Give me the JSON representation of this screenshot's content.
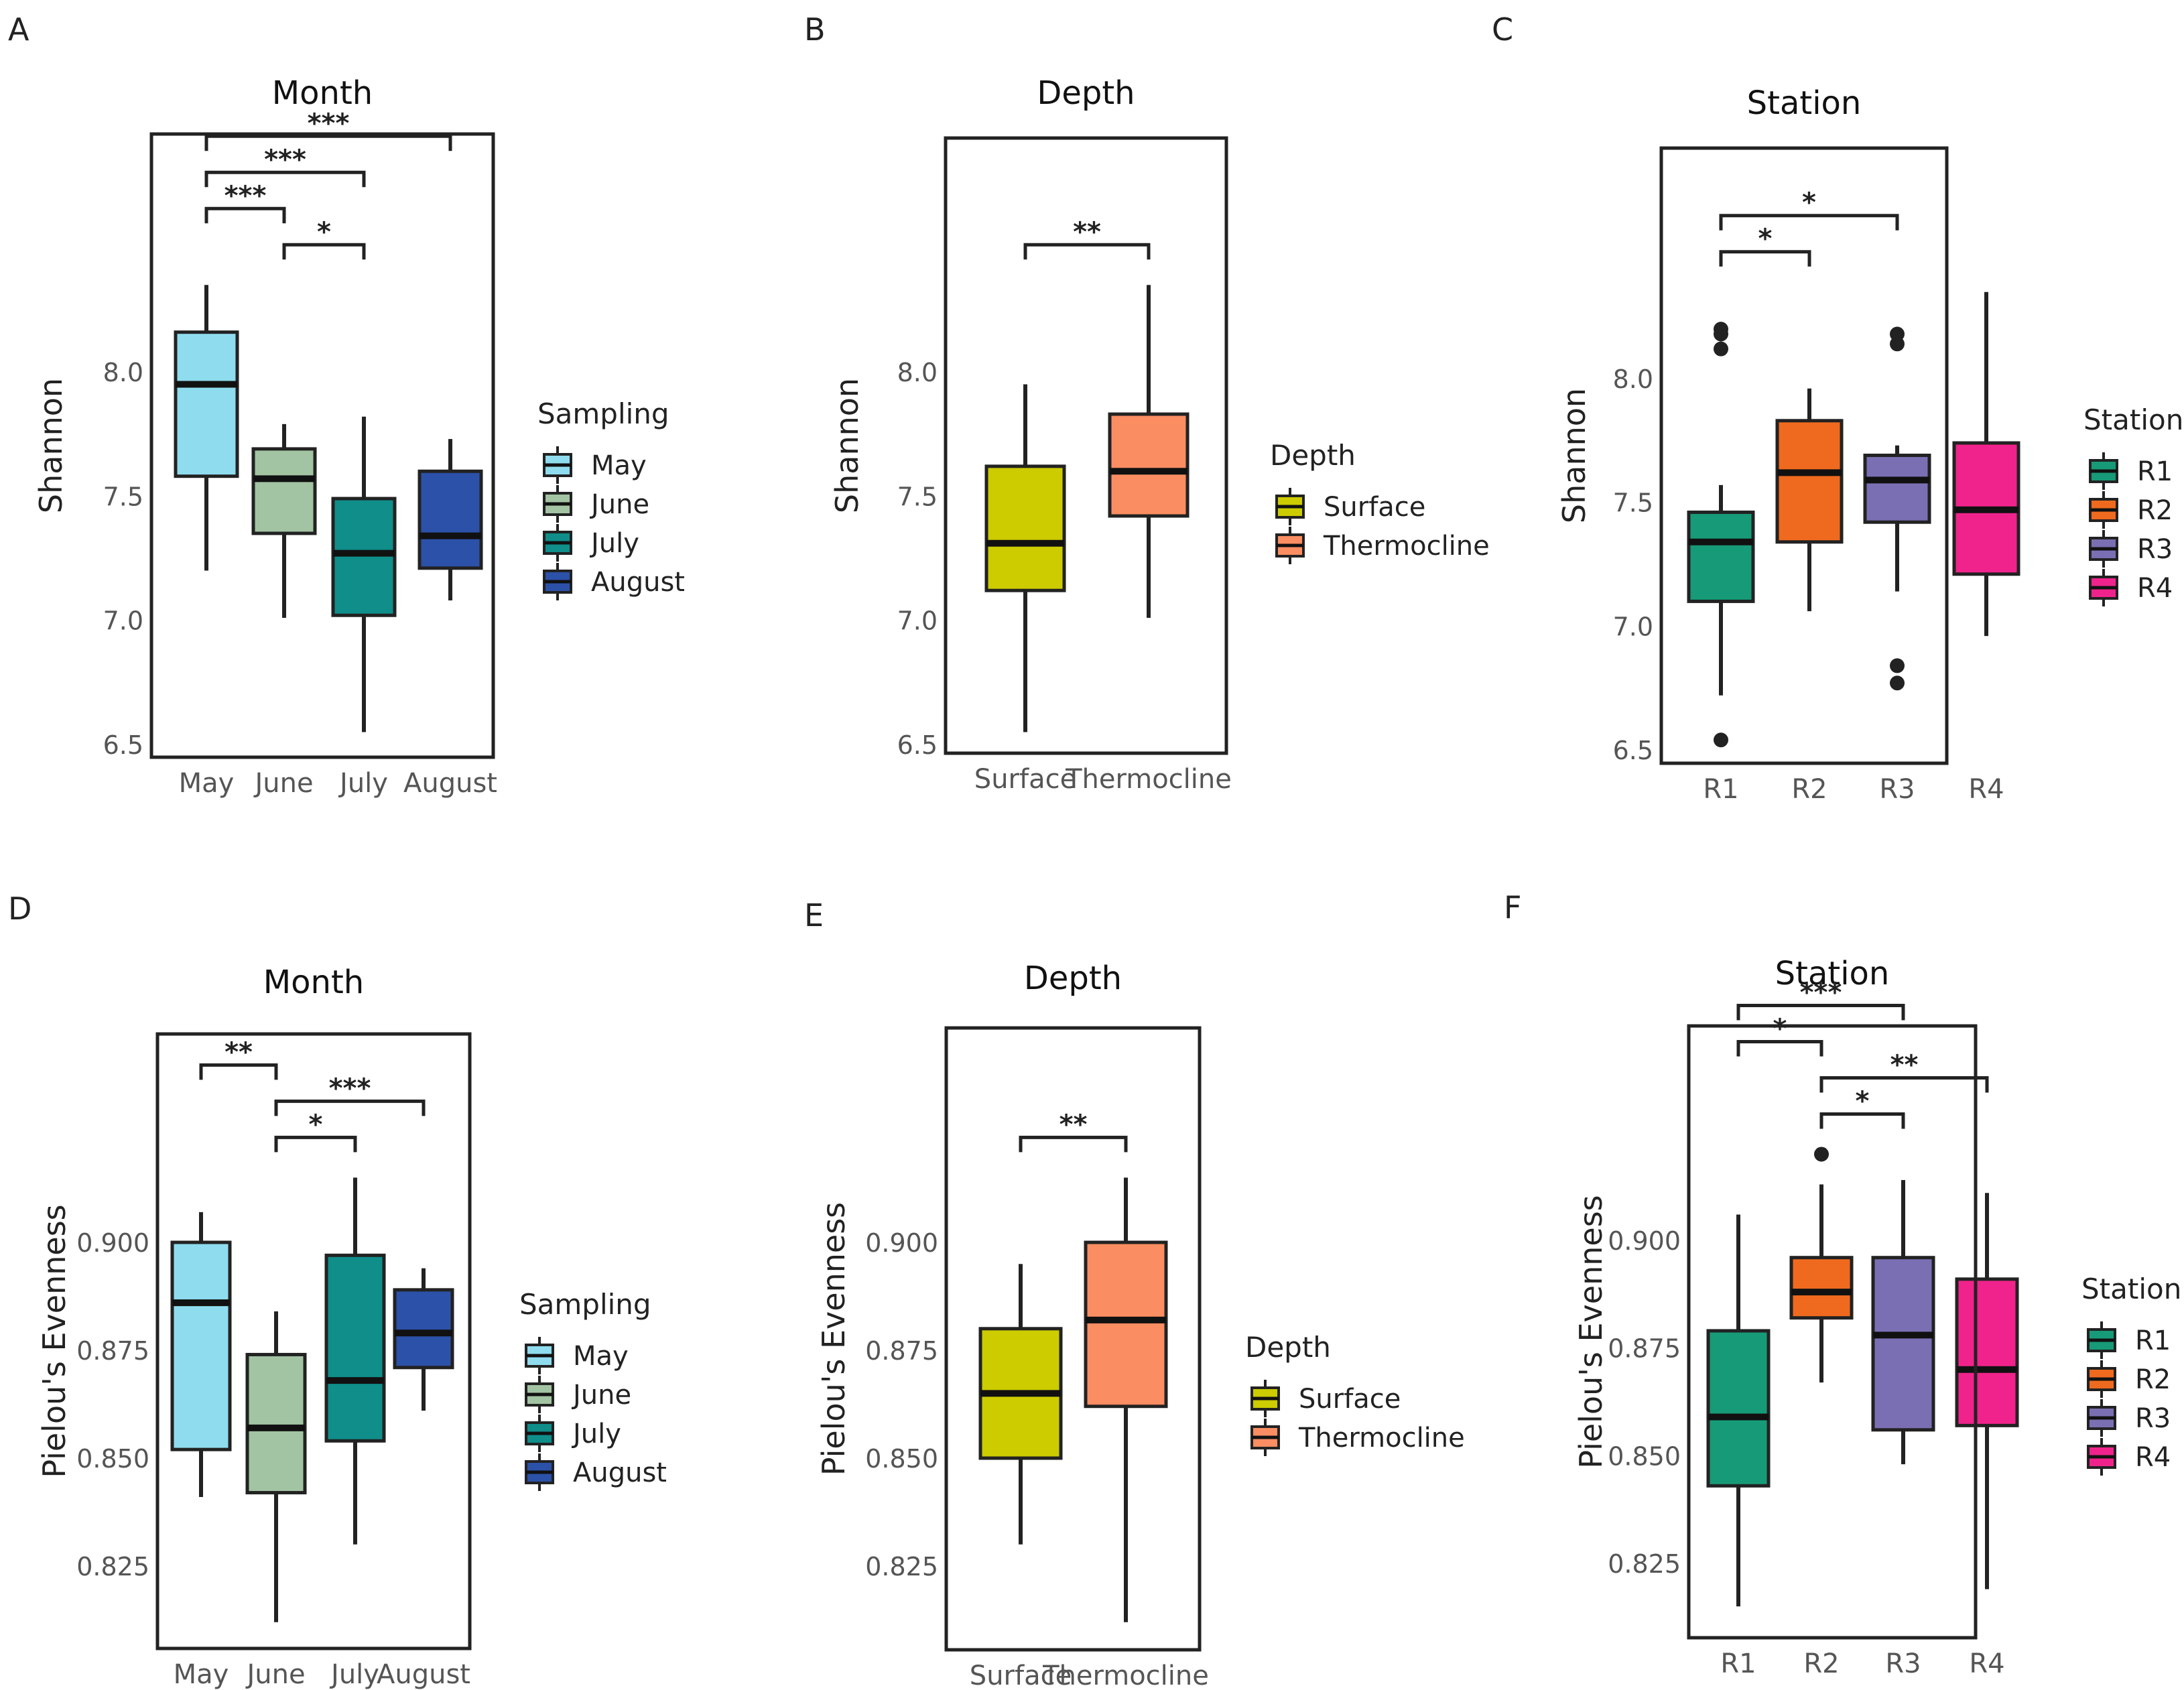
{
  "colors": {
    "May": "#8fdcee",
    "June": "#a3c4a3",
    "July": "#0f8e8a",
    "August": "#2c51a8",
    "Surface": "#cccc00",
    "Thermocline": "#fb8d62",
    "R1": "#179a77",
    "R2": "#ef6a1e",
    "R3": "#7b6fb3",
    "R4": "#f0238c"
  },
  "chart_data": [
    {
      "type": "box",
      "panel": "A",
      "title": "Month",
      "ylabel": "Shannon",
      "ylim": [
        6.45,
        8.95
      ],
      "yticks": [
        "6.5",
        "7.0",
        "7.5",
        "8.0"
      ],
      "categories": [
        "May",
        "June",
        "July",
        "August"
      ],
      "boxes": [
        {
          "name": "May",
          "min": 7.2,
          "q1": 7.58,
          "median": 7.95,
          "q3": 8.16,
          "max": 8.35,
          "outliers": []
        },
        {
          "name": "June",
          "min": 7.01,
          "q1": 7.35,
          "median": 7.57,
          "q3": 7.69,
          "max": 7.79,
          "outliers": []
        },
        {
          "name": "July",
          "min": 6.55,
          "q1": 7.02,
          "median": 7.27,
          "q3": 7.49,
          "max": 7.82,
          "outliers": []
        },
        {
          "name": "August",
          "min": 7.08,
          "q1": 7.21,
          "median": 7.34,
          "q3": 7.6,
          "max": 7.73,
          "outliers": []
        }
      ],
      "brackets": [
        {
          "from": "May",
          "to": "August",
          "label": "***"
        },
        {
          "from": "May",
          "to": "July",
          "label": "***"
        },
        {
          "from": "May",
          "to": "June",
          "label": "***"
        },
        {
          "from": "June",
          "to": "July",
          "label": "*"
        }
      ],
      "legend": {
        "title": "Sampling",
        "items": [
          "May",
          "June",
          "July",
          "August"
        ]
      }
    },
    {
      "type": "box",
      "panel": "B",
      "title": "Depth",
      "ylabel": "Shannon",
      "ylim": [
        6.45,
        8.95
      ],
      "yticks": [
        "6.5",
        "7.0",
        "7.5",
        "8.0"
      ],
      "categories": [
        "Surface",
        "Thermocline"
      ],
      "boxes": [
        {
          "name": "Surface",
          "min": 6.55,
          "q1": 7.12,
          "median": 7.31,
          "q3": 7.62,
          "max": 7.95,
          "outliers": []
        },
        {
          "name": "Thermocline",
          "min": 7.01,
          "q1": 7.42,
          "median": 7.6,
          "q3": 7.83,
          "max": 8.35,
          "outliers": []
        }
      ],
      "brackets": [
        {
          "from": "Surface",
          "to": "Thermocline",
          "label": "**"
        }
      ],
      "legend": {
        "title": "Depth",
        "items": [
          "Surface",
          "Thermocline"
        ]
      }
    },
    {
      "type": "box",
      "panel": "C",
      "title": "Station",
      "ylabel": "Shannon",
      "ylim": [
        6.45,
        8.95
      ],
      "yticks": [
        "6.5",
        "7.0",
        "7.5",
        "8.0"
      ],
      "categories": [
        "R1",
        "R2",
        "R3",
        "R4"
      ],
      "boxes": [
        {
          "name": "R1",
          "min": 6.72,
          "q1": 7.1,
          "median": 7.34,
          "q3": 7.46,
          "max": 7.57,
          "outliers": [
            6.54,
            8.12,
            8.18,
            8.2
          ]
        },
        {
          "name": "R2",
          "min": 7.06,
          "q1": 7.34,
          "median": 7.62,
          "q3": 7.83,
          "max": 7.96,
          "outliers": []
        },
        {
          "name": "R3",
          "min": 7.14,
          "q1": 7.42,
          "median": 7.59,
          "q3": 7.69,
          "max": 7.73,
          "outliers": [
            6.77,
            6.84,
            8.14,
            8.18
          ]
        },
        {
          "name": "R4",
          "min": 6.96,
          "q1": 7.21,
          "median": 7.47,
          "q3": 7.74,
          "max": 8.35,
          "outliers": []
        }
      ],
      "brackets": [
        {
          "from": "R1",
          "to": "R3",
          "label": "*"
        },
        {
          "from": "R1",
          "to": "R2",
          "label": "*"
        }
      ],
      "legend": {
        "title": "Station",
        "items": [
          "R1",
          "R2",
          "R3",
          "R4"
        ]
      }
    },
    {
      "type": "box",
      "panel": "D",
      "title": "Month",
      "ylabel": "Pielou's Evenness",
      "ylim": [
        0.8125,
        0.96
      ],
      "yticks": [
        "0.825",
        "0.850",
        "0.875",
        "0.900"
      ],
      "categories": [
        "May",
        "June",
        "July",
        "August"
      ],
      "boxes": [
        {
          "name": "May",
          "min": 0.841,
          "q1": 0.852,
          "median": 0.886,
          "q3": 0.9,
          "max": 0.907,
          "outliers": []
        },
        {
          "name": "June",
          "min": 0.812,
          "q1": 0.842,
          "median": 0.857,
          "q3": 0.874,
          "max": 0.884,
          "outliers": []
        },
        {
          "name": "July",
          "min": 0.83,
          "q1": 0.854,
          "median": 0.868,
          "q3": 0.897,
          "max": 0.915,
          "outliers": []
        },
        {
          "name": "August",
          "min": 0.861,
          "q1": 0.871,
          "median": 0.879,
          "q3": 0.889,
          "max": 0.894,
          "outliers": []
        }
      ],
      "brackets": [
        {
          "from": "May",
          "to": "June",
          "label": "**"
        },
        {
          "from": "June",
          "to": "August",
          "label": "***"
        },
        {
          "from": "June",
          "to": "July",
          "label": "*"
        }
      ],
      "legend": {
        "title": "Sampling",
        "items": [
          "May",
          "June",
          "July",
          "August"
        ]
      }
    },
    {
      "type": "box",
      "panel": "E",
      "title": "Depth",
      "ylabel": "Pielou's Evenness",
      "ylim": [
        0.8125,
        0.96
      ],
      "yticks": [
        "0.825",
        "0.850",
        "0.875",
        "0.900"
      ],
      "categories": [
        "Surface",
        "Thermocline"
      ],
      "boxes": [
        {
          "name": "Surface",
          "min": 0.83,
          "q1": 0.85,
          "median": 0.865,
          "q3": 0.88,
          "max": 0.895,
          "outliers": []
        },
        {
          "name": "Thermocline",
          "min": 0.812,
          "q1": 0.862,
          "median": 0.882,
          "q3": 0.9,
          "max": 0.915,
          "outliers": []
        }
      ],
      "brackets": [
        {
          "from": "Surface",
          "to": "Thermocline",
          "label": "**"
        }
      ],
      "legend": {
        "title": "Depth",
        "items": [
          "Surface",
          "Thermocline"
        ]
      }
    },
    {
      "type": "box",
      "panel": "F",
      "title": "Station",
      "ylabel": "Pielou's Evenness",
      "ylim": [
        0.8125,
        0.96
      ],
      "yticks": [
        "0.825",
        "0.850",
        "0.875",
        "0.900"
      ],
      "categories": [
        "R1",
        "R2",
        "R3",
        "R4"
      ],
      "boxes": [
        {
          "name": "R1",
          "min": 0.815,
          "q1": 0.843,
          "median": 0.859,
          "q3": 0.879,
          "max": 0.906,
          "outliers": []
        },
        {
          "name": "R2",
          "min": 0.867,
          "q1": 0.882,
          "median": 0.888,
          "q3": 0.896,
          "max": 0.913,
          "outliers": [
            0.92
          ]
        },
        {
          "name": "R3",
          "min": 0.848,
          "q1": 0.856,
          "median": 0.878,
          "q3": 0.896,
          "max": 0.914,
          "outliers": []
        },
        {
          "name": "R4",
          "min": 0.819,
          "q1": 0.857,
          "median": 0.87,
          "q3": 0.891,
          "max": 0.911,
          "outliers": []
        }
      ],
      "brackets": [
        {
          "from": "R1",
          "to": "R3",
          "label": "***"
        },
        {
          "from": "R1",
          "to": "R2",
          "label": "*"
        },
        {
          "from": "R2",
          "to": "R4",
          "label": "**"
        },
        {
          "from": "R2",
          "to": "R3",
          "label": "*"
        }
      ],
      "legend": {
        "title": "Station",
        "items": [
          "R1",
          "R2",
          "R3",
          "R4"
        ]
      }
    }
  ]
}
